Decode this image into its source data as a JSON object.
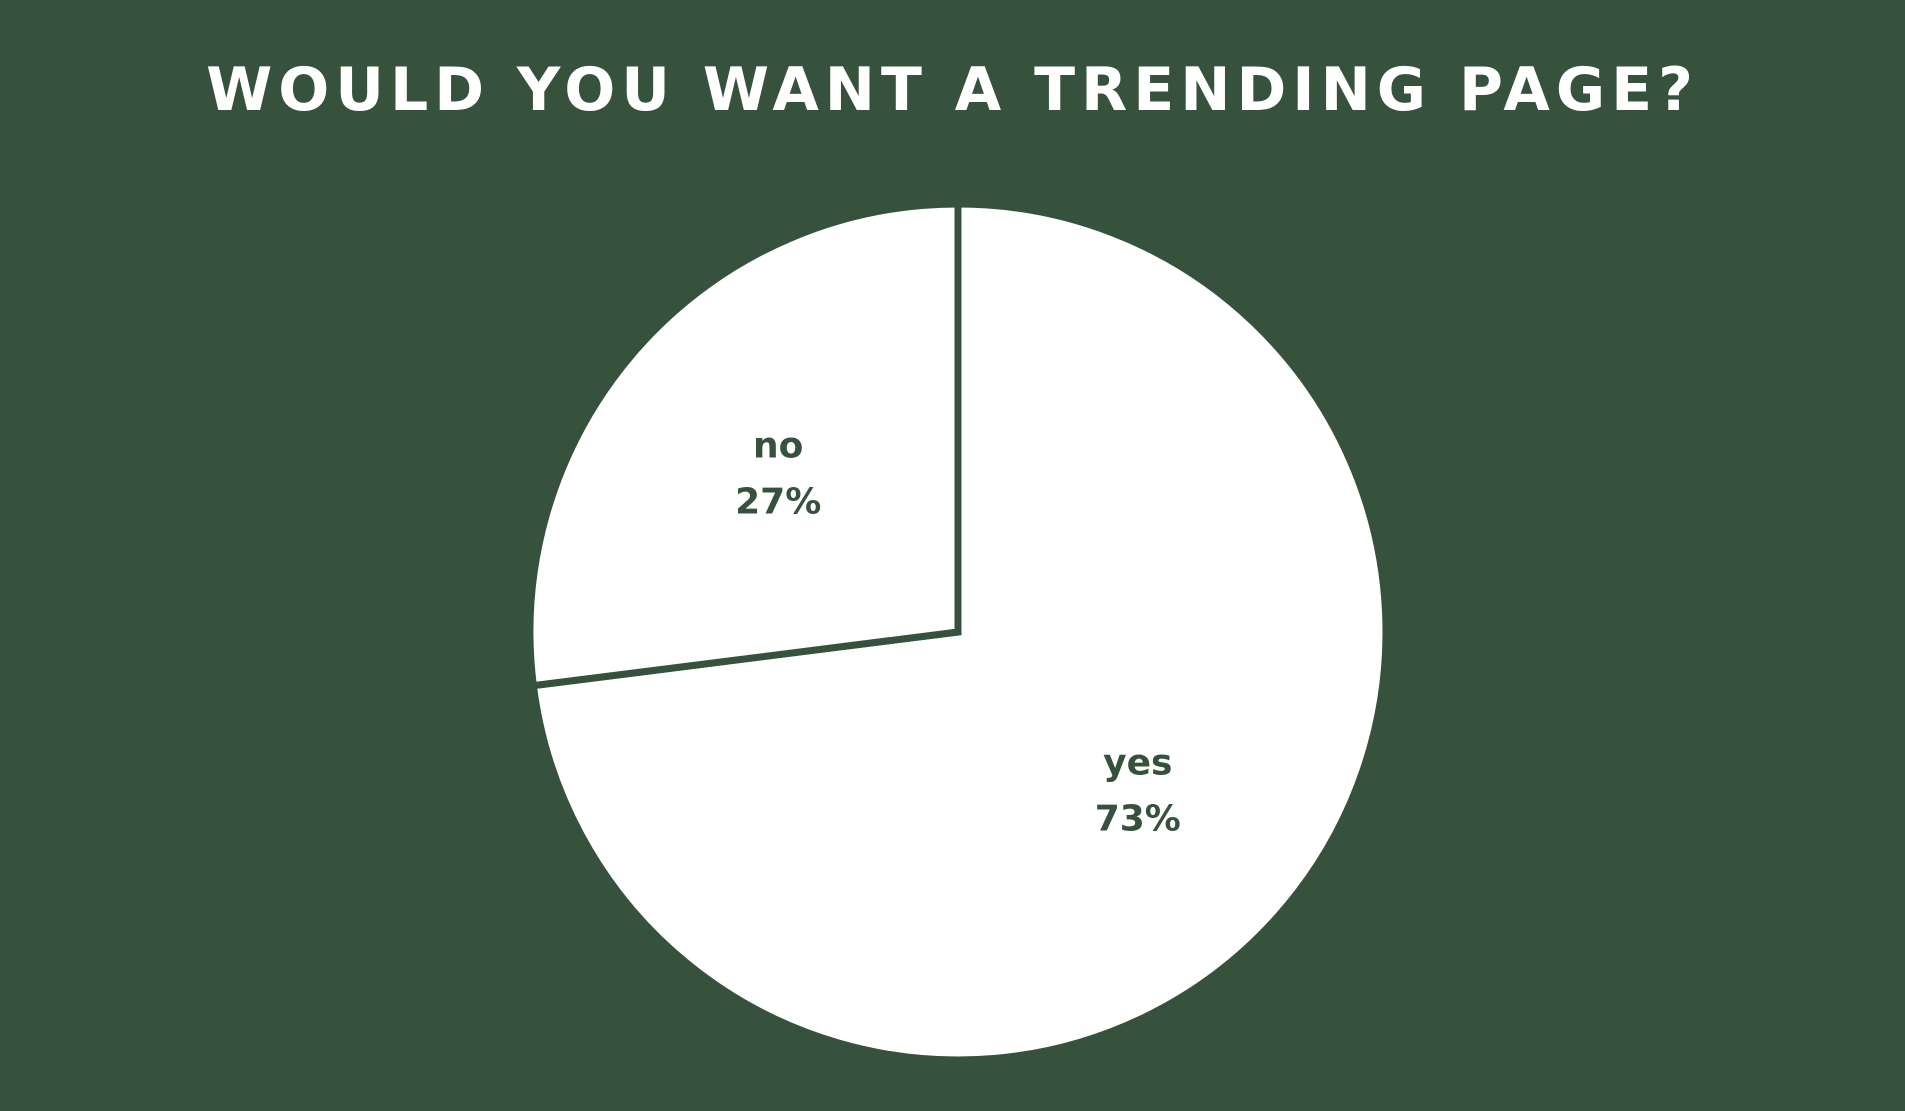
{
  "colors": {
    "background": "#36523d",
    "slice_fill": "#ffffff",
    "label_text": "#36523d",
    "title_text": "#ffffff"
  },
  "chart_data": {
    "type": "pie",
    "title": "WOULD YOU WANT A TRENDING PAGE?",
    "slices": [
      {
        "label": "yes",
        "value": 73,
        "value_label": "73%"
      },
      {
        "label": "no",
        "value": 27,
        "value_label": "27%"
      }
    ],
    "start_angle_deg": 0,
    "direction": "clockwise",
    "legend": "none",
    "data_labels": "inside"
  }
}
